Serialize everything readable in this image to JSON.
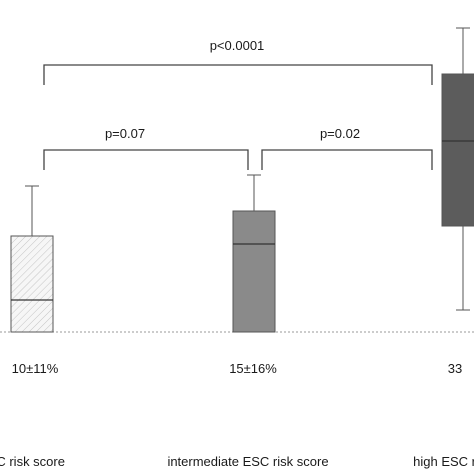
{
  "chart_data": {
    "type": "box",
    "title": "",
    "xlabel": "",
    "ylabel": "",
    "baseline_value": 0,
    "grid": false,
    "groups": [
      {
        "category": "ESC risk score",
        "stat_label": "10±11%",
        "fill": "#f3f3f3",
        "pattern": "hatched",
        "whisker_low": 0,
        "q1": 0,
        "median": 32,
        "q3": 96,
        "whisker_high": 146
      },
      {
        "category": "intermediate ESC risk score",
        "stat_label": "15±16%",
        "fill": "#8a8a8a",
        "pattern": "solid",
        "whisker_low": 0,
        "q1": 0,
        "median": 88,
        "q3": 121,
        "whisker_high": 157
      },
      {
        "category": "high ESC ri",
        "stat_label": "33",
        "fill": "#5c5c5c",
        "pattern": "solid",
        "whisker_low": 22,
        "q1": 106,
        "median": 191,
        "q3": 258,
        "whisker_high": 304
      }
    ],
    "comparisons": [
      {
        "from": 0,
        "to": 1,
        "label": "p=0.07"
      },
      {
        "from": 1,
        "to": 2,
        "label": "p=0.02"
      },
      {
        "from": 0,
        "to": 2,
        "label": "p<0.0001"
      }
    ]
  }
}
